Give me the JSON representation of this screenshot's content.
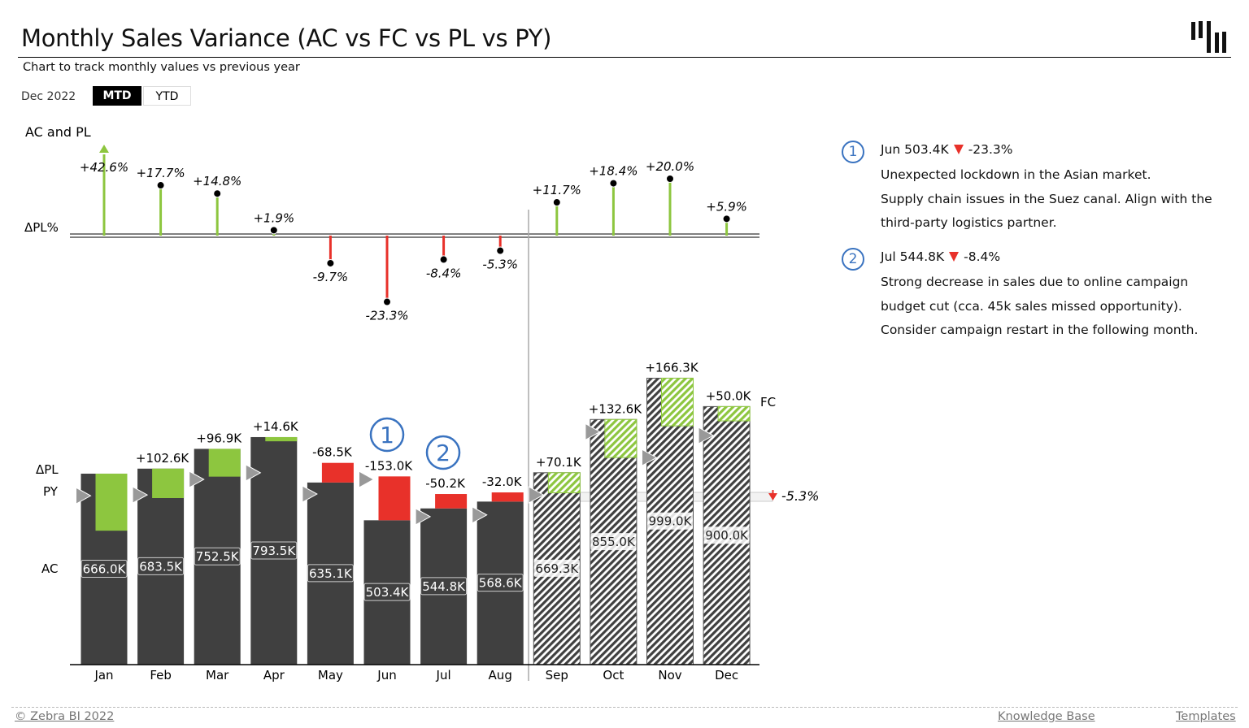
{
  "header": {
    "title": "Monthly Sales Variance (AC vs FC vs PL vs PY)",
    "subtitle": "Chart to track monthly values vs previous year",
    "period": "Dec 2022",
    "toggle": {
      "mtd": "MTD",
      "ytd": "YTD",
      "selected": "MTD"
    }
  },
  "notes": [
    {
      "number": "1",
      "head_label": "Jun 503.4K",
      "head_value": "-23.3%",
      "lines": [
        "Unexpected lockdown in the Asian market.",
        "Supply chain issues in the Suez canal. Align with the",
        "third-party logistics partner."
      ]
    },
    {
      "number": "2",
      "head_label": "Jul 544.8K",
      "head_value": "-8.4%",
      "lines": [
        "Strong decrease in sales due to online campaign",
        "budget cut (cca. 45k sales missed opportunity).",
        "Consider campaign restart in the following month."
      ]
    }
  ],
  "footer": {
    "copyright": "© Zebra BI 2022",
    "knowledge_base": "Knowledge Base",
    "templates": "Templates"
  },
  "colors": {
    "positive": "#8dc63f",
    "negative": "#e8312a",
    "actual": "#404040",
    "annotation": "#3a73c0",
    "py_marker": "#999999"
  },
  "chart_data": [
    {
      "type": "lollipop",
      "title": "AC and PL",
      "ylabel": "ΔPL%",
      "categories": [
        "Jan",
        "Feb",
        "Mar",
        "Apr",
        "May",
        "Jun",
        "Jul",
        "Aug",
        "Sep",
        "Oct",
        "Nov",
        "Dec"
      ],
      "values": [
        42.6,
        17.7,
        14.8,
        1.9,
        -9.7,
        -23.3,
        -8.4,
        -5.3,
        11.7,
        18.4,
        20.0,
        5.9
      ],
      "labels": [
        "+42.6%",
        "+17.7%",
        "+14.8%",
        "+1.9%",
        "-9.7%",
        "-23.3%",
        "-8.4%",
        "-5.3%",
        "+11.7%",
        "+18.4%",
        "+20.0%",
        "+5.9%"
      ],
      "outliers_capped": [
        "Jan"
      ]
    },
    {
      "type": "bar",
      "categories": [
        "Jan",
        "Feb",
        "Mar",
        "Apr",
        "May",
        "Jun",
        "Jul",
        "Aug",
        "Sep",
        "Oct",
        "Nov",
        "Dec"
      ],
      "row_labels": {
        "delta": "ΔPL",
        "py": "PY",
        "ac": "AC",
        "fc": "FC"
      },
      "scenario": [
        "AC",
        "AC",
        "AC",
        "AC",
        "AC",
        "AC",
        "AC",
        "AC",
        "FC",
        "FC",
        "FC",
        "FC"
      ],
      "values": [
        666.0,
        683.5,
        752.5,
        793.5,
        635.1,
        503.4,
        544.8,
        568.6,
        669.3,
        855.0,
        999.0,
        900.0
      ],
      "value_labels": [
        "666.0K",
        "683.5K",
        "752.5K",
        "793.5K",
        "635.1K",
        "503.4K",
        "544.8K",
        "568.6K",
        "669.3K",
        "855.0K",
        "999.0K",
        "900.0K"
      ],
      "delta_pl": [
        198.9,
        102.6,
        96.9,
        14.6,
        -68.5,
        -153.0,
        -50.2,
        -32.0,
        70.1,
        132.6,
        166.3,
        50.0
      ],
      "delta_labels": [
        "",
        "+102.6K",
        "+96.9K",
        "+14.6K",
        "-68.5K",
        "-153.0K",
        "-50.2K",
        "-32.0K",
        "+70.1K",
        "+132.6K",
        "+166.3K",
        "+50.0K"
      ],
      "py": [
        589,
        592,
        646,
        669,
        595,
        646,
        516,
        522,
        592,
        812,
        722,
        799
      ],
      "annotations": [
        {
          "category": "Jun",
          "number": "1"
        },
        {
          "category": "Jul",
          "number": "2"
        }
      ],
      "total_variance_label": "-5.3%",
      "unit": "K"
    }
  ]
}
